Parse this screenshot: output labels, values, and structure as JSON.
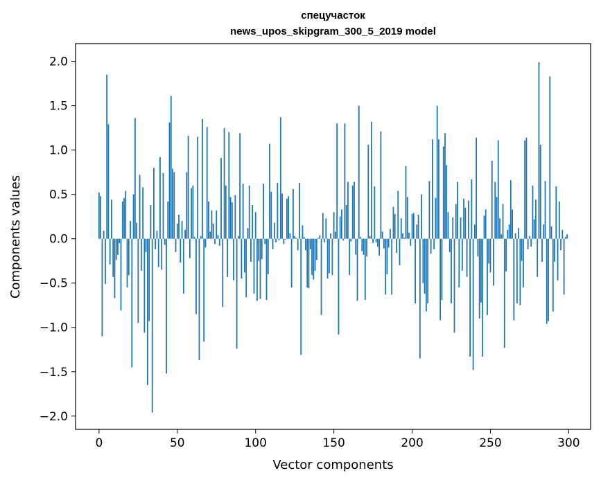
{
  "chart_data": {
    "type": "bar",
    "title": [
      "спецучасток",
      "news_upos_skipgram_300_5_2019 model"
    ],
    "xlabel": "Vector components",
    "ylabel": "Components values",
    "xlim": [
      -15,
      314
    ],
    "ylim": [
      -2.15,
      2.2
    ],
    "xticks": [
      0,
      50,
      100,
      150,
      200,
      250,
      300
    ],
    "xtick_labels": [
      "0",
      "50",
      "100",
      "150",
      "200",
      "250",
      "300"
    ],
    "yticks": [
      -2.0,
      -1.5,
      -1.0,
      -0.5,
      0.0,
      0.5,
      1.0,
      1.5,
      2.0
    ],
    "ytick_labels": [
      "−2.0",
      "−1.5",
      "−1.0",
      "−0.5",
      "0.0",
      "0.5",
      "1.0",
      "1.5",
      "2.0"
    ],
    "bar_color": "#1f77b4",
    "grid": false,
    "values": [
      0.52,
      0.48,
      -1.1,
      0.09,
      -0.51,
      1.85,
      1.29,
      -0.29,
      0.44,
      -0.43,
      -0.67,
      -0.24,
      -0.18,
      -0.05,
      -0.81,
      0.42,
      0.46,
      0.54,
      -0.55,
      -0.41,
      0.2,
      -1.45,
      0.5,
      1.36,
      0.18,
      -0.95,
      0.72,
      -0.36,
      0.58,
      -1.06,
      -0.15,
      -1.65,
      -0.93,
      0.38,
      -1.96,
      0.8,
      -0.12,
      0.09,
      -0.32,
      0.92,
      -0.35,
      0.74,
      -0.07,
      -1.52,
      0.42,
      1.31,
      1.61,
      0.79,
      0.75,
      -0.15,
      0.17,
      0.27,
      -0.27,
      0.2,
      -0.62,
      0.1,
      0.75,
      1.16,
      -0.22,
      0.57,
      0.6,
      0.02,
      -0.85,
      1.15,
      -1.37,
      0.03,
      1.35,
      -1.16,
      -0.1,
      1.26,
      0.42,
      0.08,
      0.32,
      0.17,
      -0.06,
      0.32,
      0.04,
      -0.08,
      0.91,
      -0.77,
      1.25,
      0.6,
      -0.43,
      1.2,
      0.47,
      0.41,
      -0.47,
      0.49,
      -1.24,
      0.03,
      1.19,
      -0.45,
      0.62,
      -0.38,
      -0.66,
      0.12,
      0.6,
      -0.26,
      0.38,
      -0.62,
      0.3,
      -0.7,
      -0.25,
      -0.68,
      -0.23,
      0.62,
      -0.06,
      -0.69,
      -0.4,
      1.07,
      0.53,
      -0.12,
      0.18,
      -0.04,
      0.63,
      -0.02,
      1.37,
      0.51,
      -0.06,
      -0.01,
      0.45,
      0.48,
      0.06,
      -0.55,
      0.56,
      0.03,
      0.01,
      -0.13,
      0.63,
      -1.31,
      0.15,
      0.02,
      -0.13,
      -0.55,
      -0.56,
      -0.12,
      -0.41,
      -0.46,
      -0.36,
      -0.24,
      0.01,
      0.04,
      -0.86,
      0.29,
      -0.04,
      0.23,
      -0.45,
      -0.39,
      0.06,
      -0.41,
      0.3,
      0.08,
      1.3,
      -1.08,
      0.25,
      0.33,
      -0.02,
      1.3,
      0.38,
      0.64,
      -0.41,
      -0.03,
      0.6,
      0.64,
      -0.18,
      -0.7,
      1.5,
      0.02,
      -0.14,
      -0.18,
      -0.69,
      -0.2,
      1.06,
      0.03,
      1.32,
      -0.05,
      0.59,
      -0.04,
      -0.09,
      -0.19,
      1.21,
      0.08,
      -0.11,
      -0.63,
      -0.4,
      -0.1,
      0.11,
      -0.63,
      0.36,
      0.28,
      -0.16,
      0.54,
      -0.3,
      0.23,
      0.06,
      0.01,
      0.82,
      0.47,
      0.07,
      -0.08,
      0.28,
      0.29,
      -0.73,
      0.16,
      0.27,
      -1.35,
      0.5,
      -0.5,
      -0.62,
      -0.82,
      -0.73,
      0.65,
      -0.17,
      1.12,
      -0.12,
      0.46,
      1.5,
      1.12,
      -0.92,
      -0.69,
      1.04,
      1.19,
      0.83,
      0.3,
      -0.15,
      -0.73,
      0.24,
      -1.06,
      0.39,
      0.64,
      -0.55,
      0.24,
      -0.36,
      0.45,
      0.35,
      -0.43,
      0.43,
      -1.33,
      0.67,
      -1.48,
      0.16,
      1.14,
      -0.2,
      -0.9,
      -0.72,
      -1.33,
      0.26,
      0.33,
      -0.86,
      -0.28,
      -0.38,
      0.88,
      -0.53,
      0.64,
      0.47,
      1.11,
      0.23,
      0.05,
      0.39,
      -1.23,
      -0.37,
      0.1,
      0.16,
      0.66,
      0.33,
      -0.92,
      0.06,
      -0.73,
      0.12,
      -0.75,
      -0.25,
      -0.55,
      1.11,
      1.14,
      -0.12,
      0.03,
      -0.09,
      0.6,
      0.22,
      0.44,
      -0.43,
      1.99,
      1.06,
      -0.26,
      0.16,
      0.65,
      -0.96,
      -0.93,
      1.83,
      0.14,
      -0.82,
      -0.26,
      0.59,
      -0.47,
      0.42,
      -0.13,
      0.1,
      -0.63,
      0.02,
      0.05
    ]
  }
}
